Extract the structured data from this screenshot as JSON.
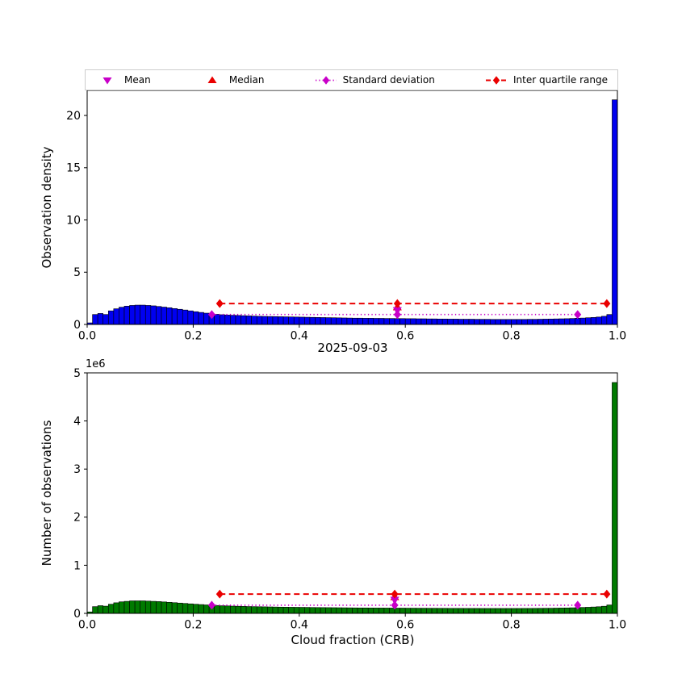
{
  "colors": {
    "blue": "#0000F0",
    "green": "#007A00",
    "red": "#EA0000",
    "magenta": "#C800C8",
    "legend_border": "#CCCCCC"
  },
  "legend": {
    "items": [
      {
        "label": "Mean",
        "marker": "triangle-down",
        "color_key": "magenta"
      },
      {
        "label": "Median",
        "marker": "triangle-up",
        "color_key": "red"
      },
      {
        "label": "Standard deviation",
        "marker": "diamond-dotted-line",
        "color_key": "magenta"
      },
      {
        "label": "Inter quartile range",
        "marker": "diamond-dashed-line",
        "color_key": "red"
      }
    ]
  },
  "chart_data": [
    {
      "type": "bar",
      "title": "",
      "xlabel": "",
      "ylabel": "Observation density",
      "xlim": [
        0.0,
        1.0
      ],
      "ylim": [
        0,
        22.4
      ],
      "xticks": [
        0.0,
        0.2,
        0.4,
        0.6,
        0.8,
        1.0
      ],
      "xtick_labels": [
        "0.0",
        "0.2",
        "0.4",
        "0.6",
        "0.8",
        "1.0"
      ],
      "yticks": [
        0,
        5,
        10,
        15,
        20
      ],
      "ytick_labels": [
        "0",
        "5",
        "10",
        "15",
        "20"
      ],
      "bar_color": "#0000F0",
      "bins": {
        "start": 0.0,
        "width": 0.01,
        "count": 100
      },
      "values": [
        0.15,
        0.95,
        1.05,
        0.95,
        1.3,
        1.5,
        1.65,
        1.75,
        1.82,
        1.85,
        1.85,
        1.82,
        1.78,
        1.72,
        1.66,
        1.6,
        1.52,
        1.45,
        1.38,
        1.3,
        1.22,
        1.15,
        1.08,
        1.02,
        0.97,
        0.93,
        0.9,
        0.88,
        0.86,
        0.84,
        0.82,
        0.8,
        0.78,
        0.77,
        0.76,
        0.75,
        0.74,
        0.73,
        0.72,
        0.71,
        0.7,
        0.69,
        0.68,
        0.67,
        0.66,
        0.65,
        0.64,
        0.63,
        0.62,
        0.61,
        0.6,
        0.6,
        0.59,
        0.59,
        0.58,
        0.58,
        0.57,
        0.57,
        0.56,
        0.56,
        0.55,
        0.55,
        0.54,
        0.54,
        0.53,
        0.53,
        0.52,
        0.52,
        0.51,
        0.51,
        0.5,
        0.5,
        0.5,
        0.49,
        0.49,
        0.49,
        0.48,
        0.48,
        0.48,
        0.48,
        0.48,
        0.48,
        0.48,
        0.49,
        0.49,
        0.5,
        0.51,
        0.52,
        0.53,
        0.54,
        0.55,
        0.57,
        0.59,
        0.61,
        0.64,
        0.67,
        0.71,
        0.78,
        0.95,
        21.5
      ],
      "annotations": {
        "mean": {
          "x": 0.585,
          "y": 1.3
        },
        "median": {
          "x": 0.585,
          "y": 1.7
        },
        "std_range": {
          "y": 0.95,
          "x_lo": 0.235,
          "x_center": 0.585,
          "x_hi": 0.925
        },
        "iqr_range": {
          "y": 2.0,
          "x_lo": 0.25,
          "x_center": 0.585,
          "x_hi": 0.98
        }
      }
    },
    {
      "type": "bar",
      "title": "2025-09-03",
      "xlabel": "Cloud fraction (CRB)",
      "ylabel": "Number of observations",
      "y_offset_label": "1e6",
      "y_unit_multiplier": 1000000,
      "xlim": [
        0.0,
        1.0
      ],
      "ylim": [
        0,
        5
      ],
      "xticks": [
        0.0,
        0.2,
        0.4,
        0.6,
        0.8,
        1.0
      ],
      "xtick_labels": [
        "0.0",
        "0.2",
        "0.4",
        "0.6",
        "0.8",
        "1.0"
      ],
      "yticks": [
        0,
        1,
        2,
        3,
        4,
        5
      ],
      "ytick_labels": [
        "0",
        "1",
        "2",
        "3",
        "4",
        "5"
      ],
      "bar_color": "#007A00",
      "bins": {
        "start": 0.0,
        "width": 0.01,
        "count": 100
      },
      "values": [
        0.03,
        0.14,
        0.16,
        0.15,
        0.19,
        0.22,
        0.24,
        0.25,
        0.26,
        0.26,
        0.26,
        0.255,
        0.25,
        0.245,
        0.238,
        0.23,
        0.222,
        0.214,
        0.206,
        0.198,
        0.19,
        0.183,
        0.176,
        0.17,
        0.164,
        0.159,
        0.155,
        0.151,
        0.148,
        0.145,
        0.142,
        0.14,
        0.138,
        0.136,
        0.134,
        0.132,
        0.13,
        0.129,
        0.127,
        0.126,
        0.125,
        0.124,
        0.122,
        0.121,
        0.12,
        0.119,
        0.118,
        0.117,
        0.116,
        0.115,
        0.114,
        0.113,
        0.113,
        0.112,
        0.111,
        0.111,
        0.11,
        0.11,
        0.109,
        0.109,
        0.108,
        0.108,
        0.107,
        0.107,
        0.106,
        0.106,
        0.105,
        0.105,
        0.104,
        0.104,
        0.104,
        0.103,
        0.103,
        0.103,
        0.102,
        0.102,
        0.102,
        0.102,
        0.102,
        0.102,
        0.102,
        0.102,
        0.103,
        0.103,
        0.104,
        0.105,
        0.106,
        0.107,
        0.109,
        0.111,
        0.113,
        0.116,
        0.119,
        0.123,
        0.127,
        0.132,
        0.138,
        0.148,
        0.175,
        4.8
      ],
      "annotations": {
        "mean": {
          "x": 0.58,
          "y": 0.27
        },
        "median": {
          "x": 0.58,
          "y": 0.35
        },
        "std_range": {
          "y": 0.17,
          "x_lo": 0.235,
          "x_center": 0.58,
          "x_hi": 0.925
        },
        "iqr_range": {
          "y": 0.4,
          "x_lo": 0.25,
          "x_center": 0.58,
          "x_hi": 0.98
        }
      }
    }
  ]
}
